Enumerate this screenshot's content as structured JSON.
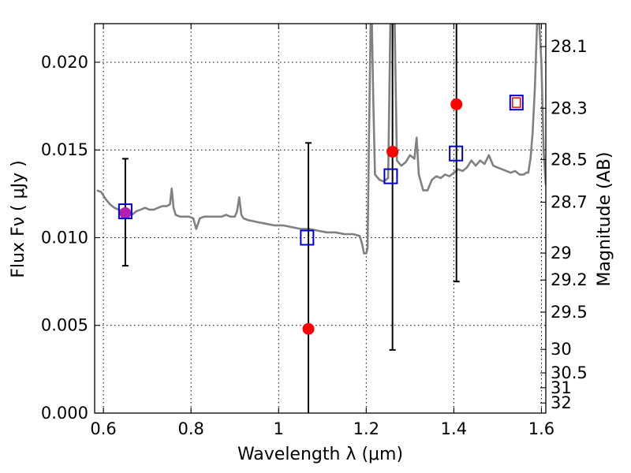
{
  "chart_data": {
    "type": "scatter",
    "xlabel": "Wavelength  λ (μm)",
    "ylabel": "Flux  Fν ( μJy )",
    "ylabel_right": "Magnitude (AB)",
    "xlim": [
      0.58,
      1.61
    ],
    "ylim": [
      0.0,
      0.0222
    ],
    "grid": true,
    "x_ticks": [
      {
        "value": 0.6,
        "label": "0.6"
      },
      {
        "value": 0.8,
        "label": "0.8"
      },
      {
        "value": 1.0,
        "label": "1"
      },
      {
        "value": 1.2,
        "label": "1.2"
      },
      {
        "value": 1.4,
        "label": "1.4"
      },
      {
        "value": 1.6,
        "label": "1.6"
      }
    ],
    "y_ticks": [
      {
        "value": 0.0,
        "label": "0.000"
      },
      {
        "value": 0.005,
        "label": "0.005"
      },
      {
        "value": 0.01,
        "label": "0.010"
      },
      {
        "value": 0.015,
        "label": "0.015"
      },
      {
        "value": 0.02,
        "label": "0.020"
      }
    ],
    "right_ticks": [
      {
        "value": 28.1,
        "label": "28.1"
      },
      {
        "value": 28.3,
        "label": "28.3"
      },
      {
        "value": 28.5,
        "label": "28.5"
      },
      {
        "value": 28.7,
        "label": "28.7"
      },
      {
        "value": 29.0,
        "label": "29"
      },
      {
        "value": 29.2,
        "label": "29.2"
      },
      {
        "value": 29.5,
        "label": "29.5"
      },
      {
        "value": 30.0,
        "label": "30"
      },
      {
        "value": 30.5,
        "label": "30.5"
      },
      {
        "value": 31.0,
        "label": "31"
      },
      {
        "value": 32.0,
        "label": "32"
      }
    ],
    "series": [
      {
        "kind": "line",
        "color": "#808080",
        "x": [
          0.585,
          0.595,
          0.605,
          0.615,
          0.625,
          0.635,
          0.645,
          0.655,
          0.665,
          0.675,
          0.685,
          0.695,
          0.705,
          0.715,
          0.725,
          0.735,
          0.745,
          0.752,
          0.756,
          0.76,
          0.765,
          0.775,
          0.785,
          0.795,
          0.805,
          0.812,
          0.816,
          0.82,
          0.83,
          0.84,
          0.85,
          0.86,
          0.87,
          0.88,
          0.89,
          0.9,
          0.905,
          0.91,
          0.915,
          0.92,
          0.93,
          0.95,
          0.97,
          0.99,
          1.01,
          1.03,
          1.05,
          1.07,
          1.09,
          1.11,
          1.13,
          1.15,
          1.17,
          1.185,
          1.19,
          1.195,
          1.2,
          1.203,
          1.206,
          1.21,
          1.213,
          1.216,
          1.22,
          1.23,
          1.24,
          1.25,
          1.255,
          1.26,
          1.265,
          1.27,
          1.28,
          1.29,
          1.3,
          1.31,
          1.315,
          1.32,
          1.33,
          1.34,
          1.35,
          1.36,
          1.37,
          1.38,
          1.39,
          1.4,
          1.41,
          1.42,
          1.43,
          1.44,
          1.45,
          1.46,
          1.47,
          1.48,
          1.49,
          1.5,
          1.51,
          1.52,
          1.53,
          1.54,
          1.55,
          1.56,
          1.565,
          1.57,
          1.575,
          1.58,
          1.585,
          1.59,
          1.595,
          1.6,
          1.605,
          1.61
        ],
        "y": [
          0.0127,
          0.0126,
          0.0122,
          0.0119,
          0.0117,
          0.0116,
          0.0115,
          0.0114,
          0.0113,
          0.0115,
          0.0116,
          0.0117,
          0.0116,
          0.0116,
          0.0117,
          0.0118,
          0.0118,
          0.0119,
          0.0128,
          0.0117,
          0.0113,
          0.0112,
          0.0112,
          0.0112,
          0.0111,
          0.0105,
          0.0108,
          0.0111,
          0.0112,
          0.0112,
          0.0112,
          0.0112,
          0.0112,
          0.0113,
          0.0112,
          0.0112,
          0.0115,
          0.0123,
          0.0113,
          0.0111,
          0.011,
          0.0109,
          0.0108,
          0.0107,
          0.0107,
          0.0106,
          0.0105,
          0.0105,
          0.0104,
          0.0103,
          0.0103,
          0.0102,
          0.0102,
          0.0101,
          0.0097,
          0.0091,
          0.0091,
          0.0094,
          0.015,
          0.0222,
          0.0222,
          0.018,
          0.0136,
          0.0133,
          0.0132,
          0.0134,
          0.0222,
          0.0222,
          0.0222,
          0.0144,
          0.0141,
          0.0143,
          0.0147,
          0.0145,
          0.0157,
          0.0136,
          0.0127,
          0.0127,
          0.0133,
          0.0135,
          0.0134,
          0.0136,
          0.0135,
          0.0137,
          0.0139,
          0.0138,
          0.014,
          0.0144,
          0.0141,
          0.0144,
          0.0142,
          0.0147,
          0.0141,
          0.014,
          0.0139,
          0.0138,
          0.0137,
          0.0138,
          0.0136,
          0.0136,
          0.0137,
          0.0137,
          0.0145,
          0.016,
          0.0185,
          0.0222,
          0.0222,
          0.02,
          0.015,
          0.013
        ]
      },
      {
        "kind": "points",
        "marker": "circle",
        "color": "#ff0000",
        "x": [
          1.068,
          1.26,
          1.406
        ],
        "y": [
          0.0048,
          0.0149,
          0.0176
        ]
      },
      {
        "kind": "points",
        "marker": "circle",
        "color": "#b21fb2",
        "x": [
          0.65
        ],
        "y": [
          0.0114
        ]
      },
      {
        "kind": "points",
        "marker": "square",
        "color": "#0000cc",
        "x": [
          0.65,
          1.065,
          1.256,
          1.405,
          1.543
        ],
        "y": [
          0.0115,
          0.01,
          0.0135,
          0.0148,
          0.0177
        ]
      },
      {
        "kind": "points",
        "marker": "square-small",
        "color": "#ff0000",
        "x": [
          1.543
        ],
        "y": [
          0.0177
        ]
      },
      {
        "kind": "errorbars",
        "color": "#000000",
        "x": [
          0.65,
          1.068,
          1.26,
          1.406
        ],
        "y_low": [
          0.0084,
          0.0,
          0.0036,
          0.0075
        ],
        "y_high": [
          0.0145,
          0.0154,
          0.0222,
          0.0222
        ],
        "cap_low": [
          true,
          false,
          true,
          true
        ],
        "cap_high": [
          true,
          true,
          false,
          false
        ]
      }
    ]
  }
}
